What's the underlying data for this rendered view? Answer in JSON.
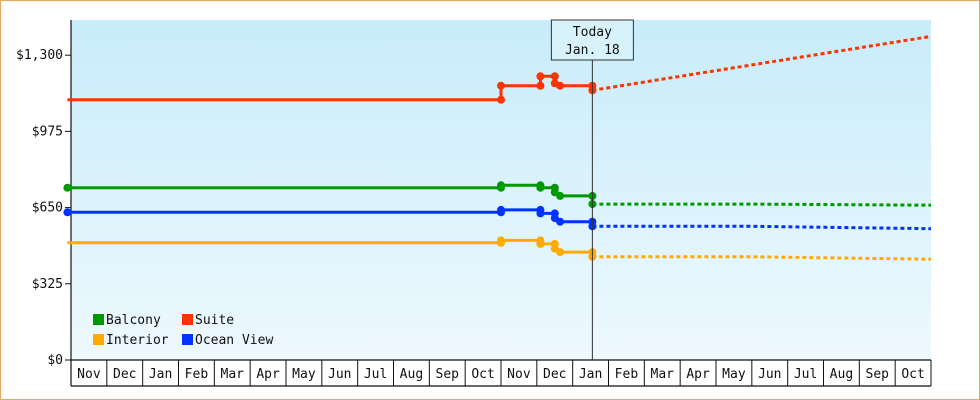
{
  "chart_data": {
    "type": "line",
    "ylim": [
      0,
      1450
    ],
    "y_ticks": [
      {
        "value": 0,
        "label": "$0"
      },
      {
        "value": 325,
        "label": "$325"
      },
      {
        "value": 650,
        "label": "$650"
      },
      {
        "value": 975,
        "label": "$975"
      },
      {
        "value": 1300,
        "label": "$1,300"
      }
    ],
    "months": [
      "Nov",
      "Dec",
      "Jan",
      "Feb",
      "Mar",
      "Apr",
      "May",
      "Jun",
      "Jul",
      "Aug",
      "Sep",
      "Oct",
      "Nov",
      "Dec",
      "Jan",
      "Feb",
      "Mar",
      "Apr",
      "May",
      "Jun",
      "Jul",
      "Aug",
      "Sep",
      "Oct"
    ],
    "today": {
      "title": "Today",
      "date": "Jan. 18",
      "month_index": 14.55
    },
    "grid": true,
    "legend_position": "bottom-left",
    "series": [
      {
        "name": "Suite",
        "color": "#ff3300",
        "history": [
          [
            -0.1,
            1110
          ],
          [
            12.0,
            1110
          ],
          [
            12.0,
            1170
          ],
          [
            13.1,
            1170
          ],
          [
            13.1,
            1210
          ],
          [
            13.5,
            1210
          ],
          [
            13.5,
            1180
          ],
          [
            13.65,
            1170
          ],
          [
            14.55,
            1170
          ],
          [
            14.55,
            1150
          ]
        ],
        "markers": [
          [
            12.0,
            1110
          ],
          [
            12.0,
            1170
          ],
          [
            13.1,
            1170
          ],
          [
            13.1,
            1210
          ],
          [
            13.5,
            1210
          ],
          [
            13.5,
            1180
          ],
          [
            13.65,
            1170
          ],
          [
            14.55,
            1170
          ],
          [
            14.55,
            1150
          ]
        ],
        "forecast": [
          [
            14.55,
            1150
          ],
          [
            24.0,
            1380
          ]
        ]
      },
      {
        "name": "Balcony",
        "color": "#009900",
        "history": [
          [
            -0.1,
            735
          ],
          [
            12.0,
            735
          ],
          [
            12.0,
            745
          ],
          [
            13.1,
            745
          ],
          [
            13.1,
            735
          ],
          [
            13.5,
            735
          ],
          [
            13.5,
            715
          ],
          [
            13.65,
            700
          ],
          [
            14.55,
            700
          ],
          [
            14.55,
            665
          ]
        ],
        "markers": [
          [
            -0.1,
            735
          ],
          [
            12.0,
            735
          ],
          [
            12.0,
            745
          ],
          [
            13.1,
            745
          ],
          [
            13.1,
            735
          ],
          [
            13.5,
            735
          ],
          [
            13.5,
            715
          ],
          [
            13.65,
            700
          ],
          [
            14.55,
            700
          ],
          [
            14.55,
            665
          ]
        ],
        "forecast": [
          [
            14.55,
            665
          ],
          [
            19.0,
            665
          ],
          [
            24.0,
            660
          ]
        ]
      },
      {
        "name": "Ocean View",
        "color": "#0033ff",
        "history": [
          [
            -0.1,
            630
          ],
          [
            12.0,
            630
          ],
          [
            12.0,
            640
          ],
          [
            13.1,
            640
          ],
          [
            13.1,
            625
          ],
          [
            13.5,
            625
          ],
          [
            13.5,
            605
          ],
          [
            13.65,
            590
          ],
          [
            14.55,
            590
          ],
          [
            14.55,
            570
          ]
        ],
        "markers": [
          [
            -0.1,
            630
          ],
          [
            12.0,
            630
          ],
          [
            12.0,
            640
          ],
          [
            13.1,
            640
          ],
          [
            13.1,
            625
          ],
          [
            13.5,
            625
          ],
          [
            13.5,
            605
          ],
          [
            13.65,
            590
          ],
          [
            14.55,
            590
          ],
          [
            14.55,
            570
          ]
        ],
        "forecast": [
          [
            14.55,
            570
          ],
          [
            19.0,
            570
          ],
          [
            24.0,
            560
          ]
        ]
      },
      {
        "name": "Interior",
        "color": "#ffaa00",
        "history": [
          [
            -0.1,
            500
          ],
          [
            12.0,
            500
          ],
          [
            12.0,
            510
          ],
          [
            13.1,
            510
          ],
          [
            13.1,
            495
          ],
          [
            13.5,
            495
          ],
          [
            13.5,
            475
          ],
          [
            13.65,
            460
          ],
          [
            14.55,
            460
          ],
          [
            14.55,
            440
          ]
        ],
        "markers": [
          [
            12.0,
            500
          ],
          [
            12.0,
            510
          ],
          [
            13.1,
            510
          ],
          [
            13.1,
            495
          ],
          [
            13.5,
            495
          ],
          [
            13.5,
            475
          ],
          [
            13.65,
            460
          ],
          [
            14.55,
            460
          ],
          [
            14.55,
            440
          ]
        ],
        "forecast": [
          [
            14.55,
            440
          ],
          [
            19.0,
            440
          ],
          [
            24.0,
            430
          ]
        ]
      }
    ],
    "legend": [
      {
        "name": "Balcony",
        "color": "#009900"
      },
      {
        "name": "Suite",
        "color": "#ff3300"
      },
      {
        "name": "Interior",
        "color": "#ffaa00"
      },
      {
        "name": "Ocean View",
        "color": "#0033ff"
      }
    ]
  }
}
